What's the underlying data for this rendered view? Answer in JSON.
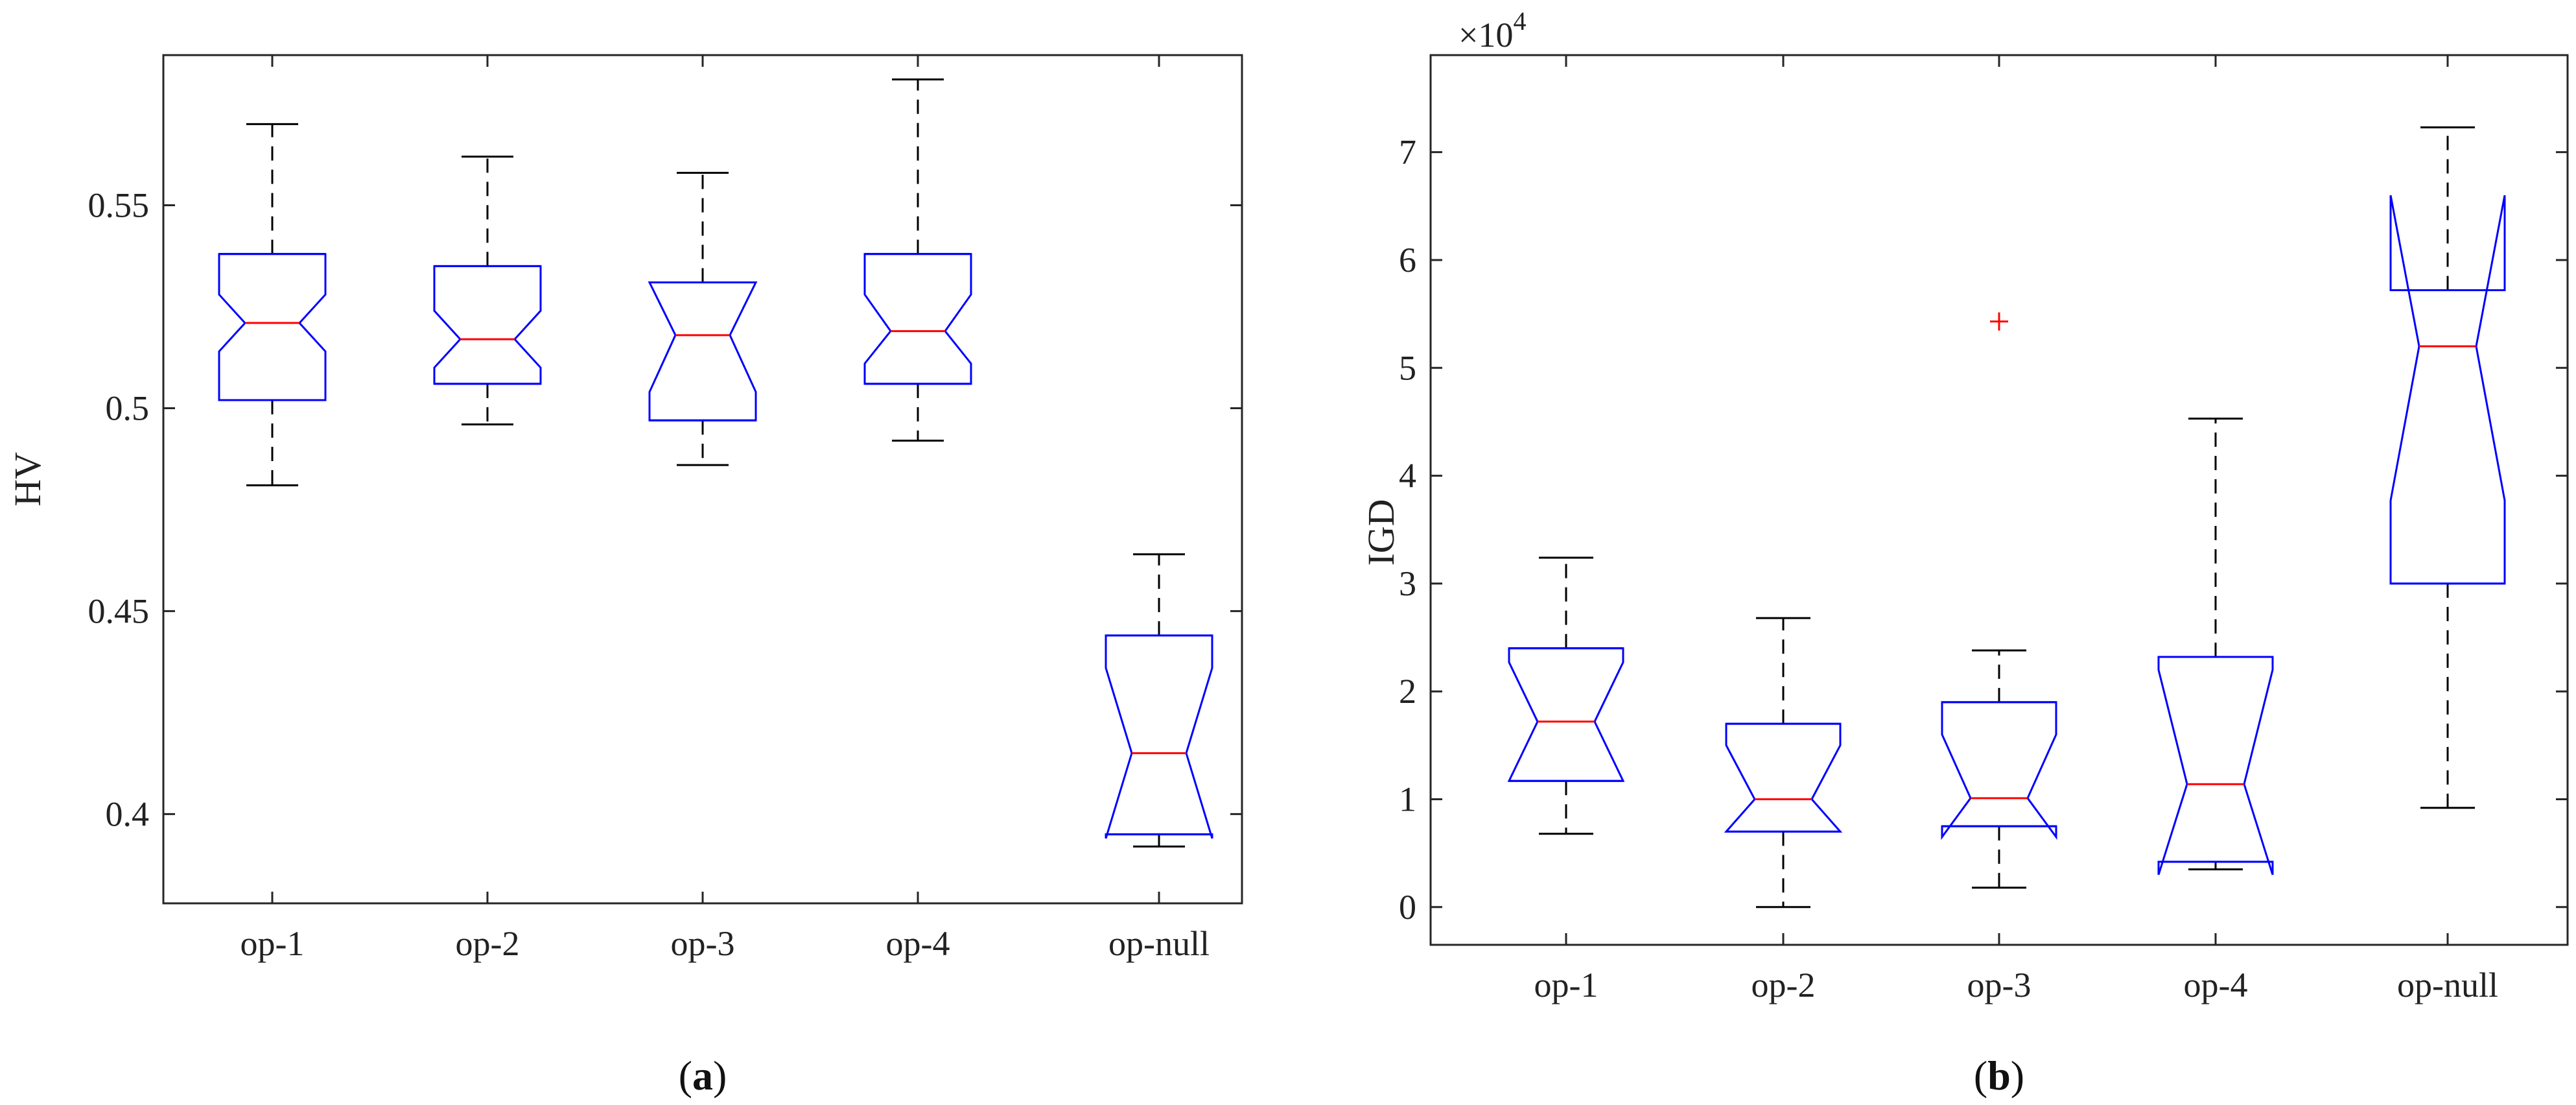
{
  "chart_data": [
    {
      "type": "boxplot",
      "panel_label": "a",
      "ylabel": "HV",
      "xlabel": "",
      "ylim": [
        0.378,
        0.587
      ],
      "yticks": [
        0.4,
        0.45,
        0.5,
        0.55
      ],
      "ytick_labels": [
        "0.4",
        "0.45",
        "0.5",
        "0.55"
      ],
      "notched": true,
      "categories": [
        "op-1",
        "op-2",
        "op-3",
        "op-4",
        "op-null"
      ],
      "boxes": [
        {
          "category": "op-1",
          "whisker_low": 0.481,
          "q1": 0.502,
          "notch_low": 0.514,
          "median": 0.521,
          "notch_high": 0.528,
          "q3": 0.538,
          "whisker_high": 0.57,
          "outliers": []
        },
        {
          "category": "op-2",
          "whisker_low": 0.496,
          "q1": 0.506,
          "notch_low": 0.51,
          "median": 0.517,
          "notch_high": 0.524,
          "q3": 0.535,
          "whisker_high": 0.562,
          "outliers": []
        },
        {
          "category": "op-3",
          "whisker_low": 0.486,
          "q1": 0.497,
          "notch_low": 0.504,
          "median": 0.518,
          "notch_high": 0.531,
          "q3": 0.531,
          "whisker_high": 0.558,
          "outliers": []
        },
        {
          "category": "op-4",
          "whisker_low": 0.492,
          "q1": 0.506,
          "notch_low": 0.511,
          "median": 0.519,
          "notch_high": 0.528,
          "q3": 0.538,
          "whisker_high": 0.581,
          "outliers": []
        },
        {
          "category": "op-null",
          "whisker_low": 0.392,
          "q1": 0.395,
          "notch_low": 0.394,
          "median": 0.415,
          "notch_high": 0.436,
          "q3": 0.444,
          "whisker_high": 0.464,
          "outliers": []
        }
      ],
      "colors": {
        "box": "#0000ff",
        "median": "#ff0000",
        "whisker": "#000000",
        "outlier": "#ff0000"
      }
    },
    {
      "type": "boxplot",
      "panel_label": "b",
      "ylabel": "IGD",
      "xlabel": "",
      "exponent_label": "×10",
      "exponent_power": "4",
      "ylim": [
        -0.35,
        7.9
      ],
      "yticks": [
        0,
        1,
        2,
        3,
        4,
        5,
        6,
        7
      ],
      "ytick_labels": [
        "0",
        "1",
        "2",
        "3",
        "4",
        "5",
        "6",
        "7"
      ],
      "notched": true,
      "categories": [
        "op-1",
        "op-2",
        "op-3",
        "op-4",
        "op-null"
      ],
      "boxes": [
        {
          "category": "op-1",
          "whisker_low": 0.68,
          "q1": 1.17,
          "notch_low": 1.17,
          "median": 1.72,
          "notch_high": 2.27,
          "q3": 2.4,
          "whisker_high": 3.24,
          "outliers": []
        },
        {
          "category": "op-2",
          "whisker_low": 0.0,
          "q1": 0.7,
          "notch_low": 0.7,
          "median": 1.0,
          "notch_high": 1.5,
          "q3": 1.7,
          "whisker_high": 2.68,
          "outliers": []
        },
        {
          "category": "op-3",
          "whisker_low": 0.18,
          "q1": 0.75,
          "notch_low": 0.65,
          "median": 1.01,
          "notch_high": 1.6,
          "q3": 1.9,
          "whisker_high": 2.38,
          "outliers": [
            5.43
          ]
        },
        {
          "category": "op-4",
          "whisker_low": 0.35,
          "q1": 0.42,
          "notch_low": 0.3,
          "median": 1.14,
          "notch_high": 2.2,
          "q3": 2.32,
          "whisker_high": 4.53,
          "outliers": []
        },
        {
          "category": "op-null",
          "whisker_low": 0.92,
          "q1": 3.0,
          "notch_low": 3.77,
          "median": 5.2,
          "notch_high": 6.6,
          "q3": 5.72,
          "whisker_high": 7.23,
          "outliers": []
        }
      ],
      "colors": {
        "box": "#0000ff",
        "median": "#ff0000",
        "whisker": "#000000",
        "outlier": "#ff0000"
      }
    }
  ]
}
